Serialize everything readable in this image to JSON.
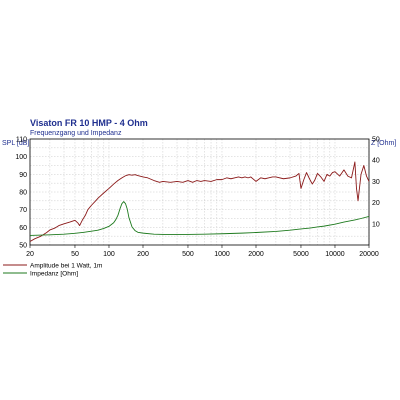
{
  "chart_data": {
    "type": "line",
    "title": "Visaton FR 10 HMP - 4 Ohm",
    "subtitle": "Frequenzgang und Impedanz",
    "y_left_label": "SPL [dB]",
    "y_right_label": "Z [Ohm]",
    "x_scale": "log",
    "xlim": [
      20,
      20000
    ],
    "ylim_left": [
      50,
      110
    ],
    "ylim_right": [
      0,
      50
    ],
    "x_ticks": [
      20,
      50,
      100,
      200,
      500,
      1000,
      2000,
      5000,
      10000,
      20000
    ],
    "x_tick_labels": [
      "20",
      "50",
      "100",
      "200",
      "500",
      "1000",
      "2000",
      "5000",
      "10000",
      "20000"
    ],
    "y_left_ticks": [
      50,
      60,
      70,
      80,
      90,
      100,
      110
    ],
    "y_left_tick_labels": [
      "50",
      "60",
      "70",
      "80",
      "90",
      "100",
      "110"
    ],
    "y_right_ticks": [
      10,
      20,
      30,
      40,
      50
    ],
    "y_right_tick_labels": [
      "10",
      "20",
      "30",
      "40",
      "50"
    ],
    "grid": true,
    "legend_position": "bottom-left",
    "series": [
      {
        "name": "Amplitude bei 1 Watt, 1m",
        "color": "#8b1a1a",
        "axis": "left",
        "x": [
          20,
          22,
          25,
          28,
          30,
          33,
          36,
          40,
          45,
          50,
          53,
          55,
          58,
          62,
          65,
          70,
          75,
          80,
          90,
          100,
          110,
          120,
          130,
          140,
          150,
          160,
          170,
          180,
          200,
          220,
          250,
          280,
          300,
          350,
          400,
          450,
          500,
          550,
          600,
          650,
          700,
          800,
          900,
          1000,
          1100,
          1200,
          1300,
          1400,
          1500,
          1600,
          1700,
          1800,
          2000,
          2200,
          2400,
          2600,
          2800,
          3000,
          3500,
          4000,
          4500,
          4800,
          5000,
          5300,
          5600,
          6000,
          6300,
          6600,
          7000,
          7500,
          8000,
          8500,
          9000,
          9500,
          10000,
          11000,
          12000,
          13000,
          14000,
          15000,
          15500,
          16000,
          17000,
          18000,
          19000,
          20000
        ],
        "values": [
          52,
          53.5,
          55,
          57,
          58.5,
          59.5,
          61,
          62,
          63,
          64,
          62.5,
          61,
          64,
          67,
          70,
          72.5,
          74.5,
          76.5,
          79.5,
          82,
          84.5,
          86.5,
          88,
          89.2,
          89.8,
          89.5,
          89.8,
          89.3,
          88.5,
          88,
          86.5,
          85.5,
          86,
          85.5,
          86,
          85.5,
          86.5,
          85.5,
          86.5,
          86,
          86.5,
          86,
          87,
          87,
          88,
          87.5,
          88,
          88.5,
          88,
          88.5,
          88,
          88.5,
          86,
          88,
          87.5,
          88,
          88.5,
          88.5,
          87.5,
          88,
          89,
          90.5,
          82,
          87,
          91,
          87,
          84.5,
          86.5,
          90.5,
          88.5,
          86,
          90,
          89,
          91,
          91.5,
          89,
          92.5,
          89,
          88,
          97,
          82,
          75,
          90,
          95,
          89,
          86
        ]
      },
      {
        "name": "Impedanz [Ohm]",
        "color": "#1e7a1e",
        "axis": "right",
        "x": [
          20,
          30,
          40,
          50,
          60,
          70,
          80,
          90,
          100,
          110,
          115,
          120,
          125,
          130,
          135,
          140,
          145,
          150,
          160,
          170,
          180,
          200,
          250,
          300,
          400,
          500,
          700,
          1000,
          1500,
          2000,
          3000,
          4000,
          5000,
          6000,
          7000,
          8000,
          10000,
          12000,
          15000,
          17000,
          20000
        ],
        "values": [
          4.5,
          4.8,
          5.1,
          5.5,
          6,
          6.5,
          7,
          7.8,
          8.8,
          10.5,
          12,
          14,
          17,
          19.5,
          20.5,
          19.5,
          17,
          13,
          8.5,
          6.8,
          6,
          5.6,
          5.1,
          5,
          5,
          5,
          5.1,
          5.3,
          5.6,
          5.9,
          6.4,
          7,
          7.6,
          8,
          8.5,
          8.9,
          9.8,
          10.8,
          11.8,
          12.5,
          13.5
        ]
      }
    ]
  }
}
